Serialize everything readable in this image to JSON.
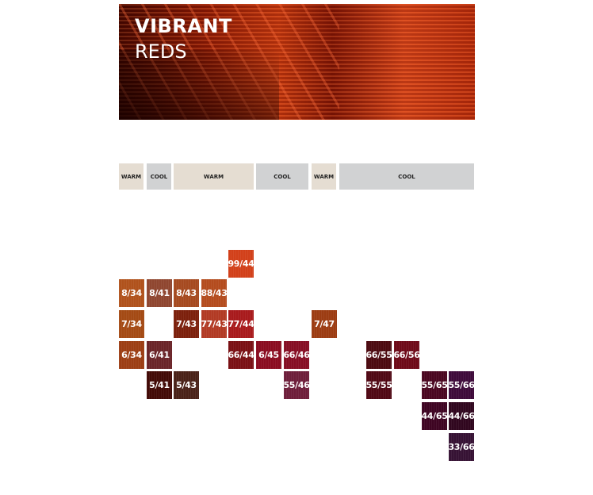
{
  "banner": {
    "title_bold": "VIBRANT",
    "title_light": "REDS"
  },
  "headers": [
    {
      "label": "WARM",
      "type": "warm"
    },
    {
      "label": "COOL",
      "type": "cool"
    },
    {
      "label": "WARM",
      "type": "warm"
    },
    {
      "label": "COOL",
      "type": "cool"
    },
    {
      "label": "WARM",
      "type": "warm"
    },
    {
      "label": "COOL",
      "type": "cool"
    }
  ],
  "swatches": [
    {
      "label": "99/44",
      "col": 4,
      "row": 0,
      "color": "#d2401a"
    },
    {
      "label": "8/34",
      "col": 0,
      "row": 1,
      "color": "#b0521c"
    },
    {
      "label": "8/41",
      "col": 1,
      "row": 1,
      "color": "#8f4630"
    },
    {
      "label": "8/43",
      "col": 2,
      "row": 1,
      "color": "#a64a20"
    },
    {
      "label": "88/43",
      "col": 3,
      "row": 1,
      "color": "#b44c1e"
    },
    {
      "label": "7/34",
      "col": 0,
      "row": 2,
      "color": "#a44a14"
    },
    {
      "label": "7/43",
      "col": 2,
      "row": 2,
      "color": "#7c200c"
    },
    {
      "label": "77/43",
      "col": 3,
      "row": 2,
      "color": "#b23a24"
    },
    {
      "label": "77/44",
      "col": 4,
      "row": 2,
      "color": "#a81a1c"
    },
    {
      "label": "7/47",
      "col": 7,
      "row": 2,
      "color": "#9c3c12"
    },
    {
      "label": "6/34",
      "col": 0,
      "row": 3,
      "color": "#9c3e14"
    },
    {
      "label": "6/41",
      "col": 1,
      "row": 3,
      "color": "#6a2428"
    },
    {
      "label": "66/44",
      "col": 4,
      "row": 3,
      "color": "#7a1014"
    },
    {
      "label": "6/45",
      "col": 5,
      "row": 3,
      "color": "#8a0c20"
    },
    {
      "label": "66/46",
      "col": 6,
      "row": 3,
      "color": "#860e24"
    },
    {
      "label": "66/55",
      "col": 9,
      "row": 3,
      "color": "#4c0a10"
    },
    {
      "label": "66/56",
      "col": 10,
      "row": 3,
      "color": "#6e0a18"
    },
    {
      "label": "5/41",
      "col": 1,
      "row": 4,
      "color": "#420a06"
    },
    {
      "label": "5/43",
      "col": 2,
      "row": 4,
      "color": "#4a2218"
    },
    {
      "label": "55/46",
      "col": 6,
      "row": 4,
      "color": "#6e1e3a"
    },
    {
      "label": "55/55",
      "col": 9,
      "row": 4,
      "color": "#500814"
    },
    {
      "label": "55/65",
      "col": 11,
      "row": 4,
      "color": "#4a0620"
    },
    {
      "label": "55/66",
      "col": 12,
      "row": 4,
      "color": "#3e0a3a"
    },
    {
      "label": "44/65",
      "col": 11,
      "row": 5,
      "color": "#3e0422"
    },
    {
      "label": "44/66",
      "col": 12,
      "row": 5,
      "color": "#30061e"
    },
    {
      "label": "33/66",
      "col": 12,
      "row": 6,
      "color": "#361234"
    }
  ]
}
